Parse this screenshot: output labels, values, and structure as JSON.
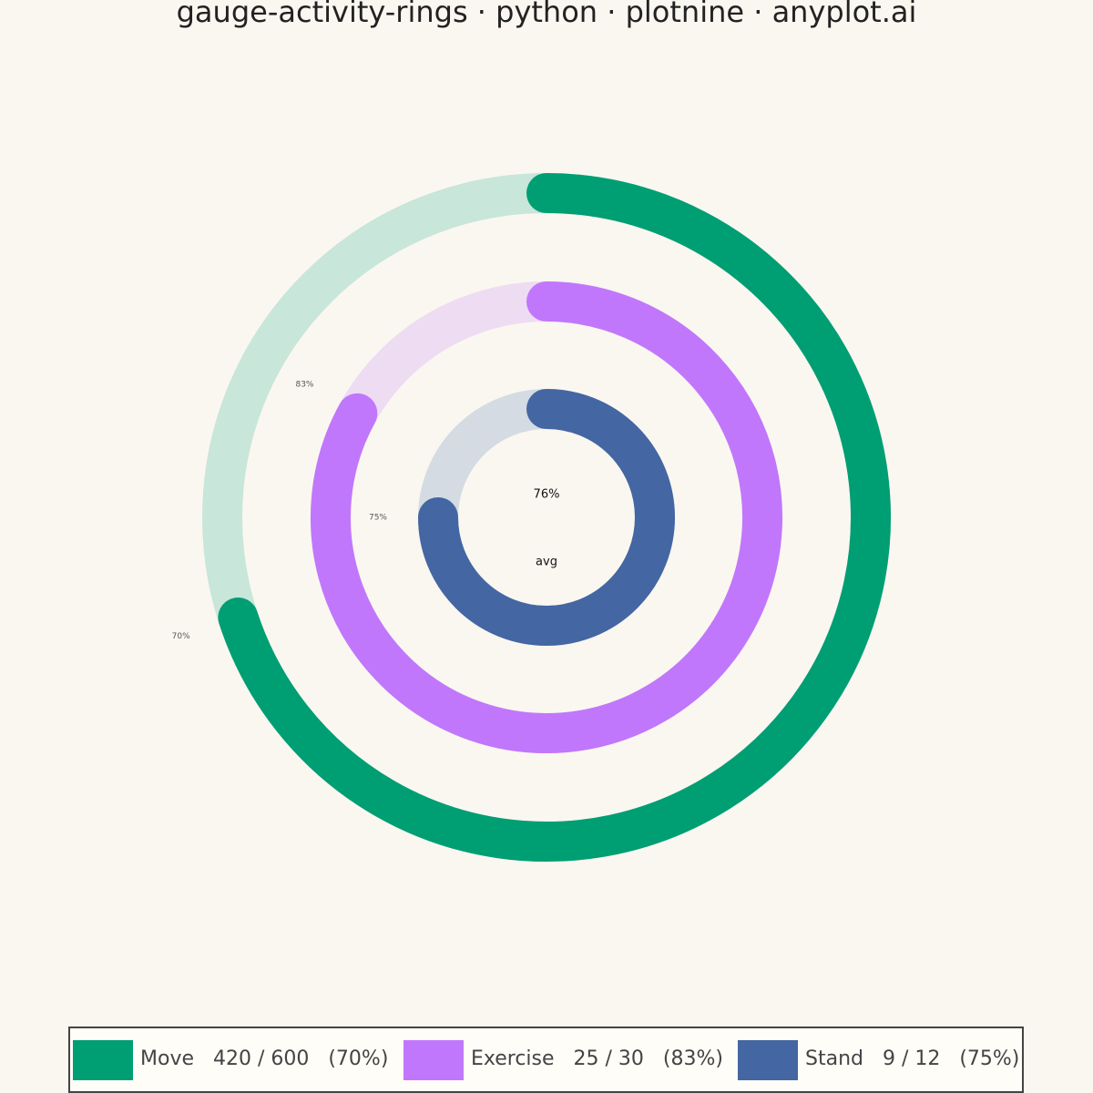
{
  "chart_data": {
    "type": "activity-rings",
    "title": "gauge-activity-rings · python · plotnine · anyplot.ai",
    "series": [
      {
        "name": "Move",
        "color": "#009E73",
        "track_color": "#c8e6d9",
        "value": 70,
        "value_label": "70%",
        "legend_label": "Move   420 / 600   (70%)"
      },
      {
        "name": "Exercise",
        "color": "#C177FB",
        "track_color": "#eedcf3",
        "value": 83,
        "value_label": "83%",
        "legend_label": "Exercise   25 / 30   (83%)"
      },
      {
        "name": "Stand",
        "color": "#4466A3",
        "track_color": "#d5dbe2",
        "value": 75,
        "value_label": "75%",
        "legend_label": "Stand   9 / 12   (75%)"
      }
    ],
    "center_value": 76,
    "center_label": "76%",
    "center_caption": "avg",
    "scale_max": 100
  }
}
